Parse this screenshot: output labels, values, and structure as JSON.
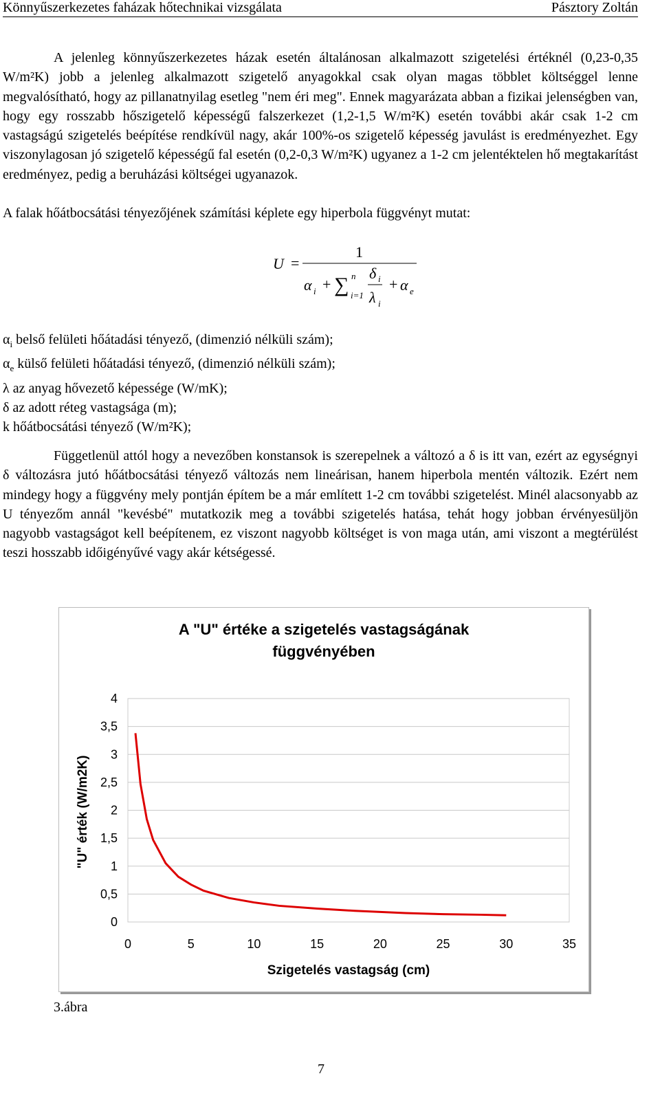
{
  "header": {
    "left": "Könnyűszerkezetes faházak hőtechnikai vizsgálata",
    "right": "Pásztory Zoltán"
  },
  "paragraphs": [
    "A jelenleg könnyűszerkezetes házak esetén általánosan alkalmazott szigetelési értéknél (0,23-0,35 W/m²K) jobb a jelenleg alkalmazott szigetelő anyagokkal csak olyan magas többlet költséggel lenne megvalósítható, hogy az pillanatnyilag esetleg \"nem éri meg\". Ennek magyarázata abban a fizikai jelenségben van, hogy egy rosszabb hőszigetelő képességű falszerkezet (1,2-1,5 W/m²K) esetén további akár csak 1-2 cm vastagságú szigetelés beépítése rendkívül nagy, akár 100%-os szigetelő képesség javulást is eredményezhet. Egy viszonylagosan jó szigetelő képességű fal esetén (0,2-0,3 W/m²K) ugyanez a 1-2 cm jelentéktelen hő megtakarítást eredményez, pedig a beruházási költségei ugyanazok.",
    "A falak hőátbocsátási tényezőjének számítási képlete egy hiperbola függvényt mutat:",
    "Függetlenül attól hogy a nevezőben konstansok is szerepelnek a változó a δ is itt van, ezért az egységnyi δ változásra jutó hőátbocsátási tényező változás nem lineárisan, hanem hiperbola mentén változik. Ezért nem mindegy hogy a függvény mely pontján építem be a már említett 1-2 cm további szigetelést. Minél alacsonyabb az U tényezőm annál \"kevésbé\" mutatkozik meg a további szigetelés hatása, tehát hogy jobban érvényesüljön nagyobb vastagságot kell beépítenem, ez viszont nagyobb költséget is von maga után, ami viszont a megtérülést teszi hosszabb időigényűvé vagy akár kétségessé."
  ],
  "formula": {
    "lhs": "U",
    "eq": "=",
    "numerator": "1",
    "alpha": "α",
    "alpha_sub": "i",
    "plus": "+",
    "sum": "∑",
    "sum_upper": "n",
    "sum_lower": "i=1",
    "delta": "δ",
    "delta_sub": "i",
    "lambda": "λ",
    "lambda_sub": "i",
    "plus2": "+",
    "alpha2": "α",
    "alpha2_sub": "e"
  },
  "definitions": [
    {
      "symbol": "α",
      "sub": "i",
      "text": " belső felületi hőátadási tényező, (dimenzió nélküli szám);"
    },
    {
      "symbol": "α",
      "sub": "e",
      "text": " külső felületi hőátadási tényező, (dimenzió nélküli szám);"
    },
    {
      "symbol": "λ",
      "sub": "",
      "text": " az anyag hővezető képessége (W/mK);"
    },
    {
      "symbol": "δ",
      "sub": "",
      "text": " az adott réteg vastagsága (m);"
    },
    {
      "symbol": "k",
      "sub": "",
      "text": " hőátbocsátási tényező (W/m²K);"
    }
  ],
  "chart_data": {
    "type": "line",
    "title": "A \"U\" értéke a szigetelés vastagságának függvényében",
    "x_label": "Szigetelés vastagság (cm)",
    "y_label": "\"U\" érték (W/m2K)",
    "x": [
      0.6,
      1,
      1.5,
      2,
      3,
      4,
      5,
      6,
      8,
      10,
      12,
      15,
      18,
      20,
      22,
      25,
      28,
      30
    ],
    "series": [
      {
        "name": "U",
        "color": "#dd0000",
        "values": [
          3.38,
          2.47,
          1.84,
          1.47,
          1.05,
          0.81,
          0.67,
          0.56,
          0.43,
          0.35,
          0.29,
          0.24,
          0.2,
          0.18,
          0.16,
          0.14,
          0.13,
          0.12
        ]
      }
    ],
    "xlim": [
      0,
      35
    ],
    "xticks": [
      0,
      5,
      10,
      15,
      20,
      25,
      30,
      35
    ],
    "ylim": [
      0,
      4
    ],
    "yticks": [
      0,
      {
        "value": 0.5,
        "label": "0,5"
      },
      1,
      {
        "value": 1.5,
        "label": "1,5"
      },
      2,
      {
        "value": 2.5,
        "label": "2,5"
      },
      3,
      {
        "value": 3.5,
        "label": "3,5"
      },
      4
    ],
    "grid": true
  },
  "caption": "3.ábra",
  "page_number": "7"
}
